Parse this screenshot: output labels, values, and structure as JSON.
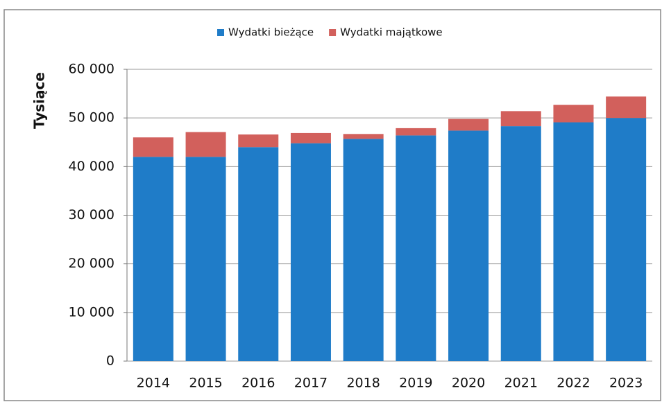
{
  "chart_data": {
    "type": "stacked_bar",
    "y_label": "Tysiące",
    "categories": [
      "2014",
      "2015",
      "2016",
      "2017",
      "2018",
      "2019",
      "2020",
      "2021",
      "2022",
      "2023"
    ],
    "series": [
      {
        "name": "Wydatki bieżące",
        "color": "#1f7cc8",
        "values": [
          42000,
          42000,
          44000,
          44800,
          45700,
          46400,
          47400,
          48300,
          49100,
          50000
        ]
      },
      {
        "name": "Wydatki majątkowe",
        "color": "#d2605c",
        "values": [
          4000,
          5100,
          2600,
          2100,
          1000,
          1500,
          2400,
          3100,
          3600,
          4400
        ]
      }
    ],
    "ylim": [
      0,
      60000
    ],
    "yticks": [
      {
        "value": 0,
        "label": "0"
      },
      {
        "value": 10000,
        "label": "10 000"
      },
      {
        "value": 20000,
        "label": "20 000"
      },
      {
        "value": 30000,
        "label": "30 000"
      },
      {
        "value": 40000,
        "label": "40 000"
      },
      {
        "value": 50000,
        "label": "50 000"
      },
      {
        "value": 60000,
        "label": "60 000"
      }
    ],
    "grid": true,
    "legend": "top"
  }
}
